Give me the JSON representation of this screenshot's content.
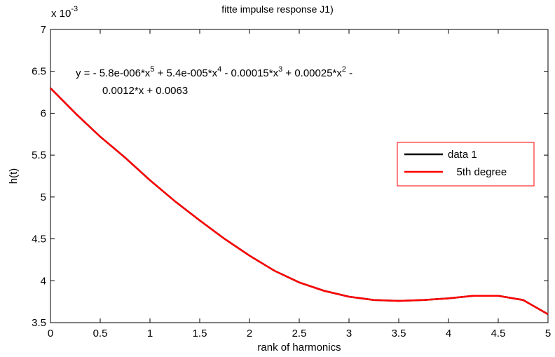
{
  "chart_data": {
    "type": "line",
    "title": "fitte impulse response J1)",
    "xlabel": "rank of harmonics",
    "ylabel": "h(t)",
    "y_multiplier": {
      "base": "x 10",
      "exponent": "-3"
    },
    "annotation": {
      "line1": [
        "y = - 5.8e-006*x",
        "5",
        " + 5.4e-005*x",
        "4",
        " - 0.00015*x",
        "3",
        " + 0.00025*x",
        "2",
        " -"
      ],
      "line2": "0.0012*x + 0.0063"
    },
    "x": [
      0,
      0.25,
      0.5,
      0.75,
      1,
      1.25,
      1.5,
      1.75,
      2,
      2.25,
      2.5,
      2.75,
      3,
      3.25,
      3.5,
      3.75,
      4,
      4.25,
      4.5,
      4.75,
      5
    ],
    "series": [
      {
        "name": "data 1",
        "color": "#000000",
        "values": [
          6.3,
          6.0,
          5.72,
          5.47,
          5.2,
          4.95,
          4.72,
          4.5,
          4.3,
          4.12,
          3.98,
          3.88,
          3.81,
          3.77,
          3.76,
          3.77,
          3.79,
          3.82,
          3.82,
          3.77,
          3.6
        ]
      },
      {
        "name": "   5th degree",
        "color": "#ff0000",
        "values": [
          6.3,
          6.0,
          5.72,
          5.47,
          5.2,
          4.95,
          4.72,
          4.5,
          4.3,
          4.12,
          3.98,
          3.88,
          3.81,
          3.77,
          3.76,
          3.77,
          3.79,
          3.82,
          3.82,
          3.77,
          3.6
        ]
      }
    ],
    "xlim": [
      0,
      5
    ],
    "xticks": [
      0,
      0.5,
      1,
      1.5,
      2,
      2.5,
      3,
      3.5,
      4,
      4.5,
      5
    ],
    "ylim": [
      3.5,
      7
    ],
    "yticks": [
      3.5,
      4,
      4.5,
      5,
      5.5,
      6,
      6.5,
      7
    ],
    "legend": "right"
  }
}
